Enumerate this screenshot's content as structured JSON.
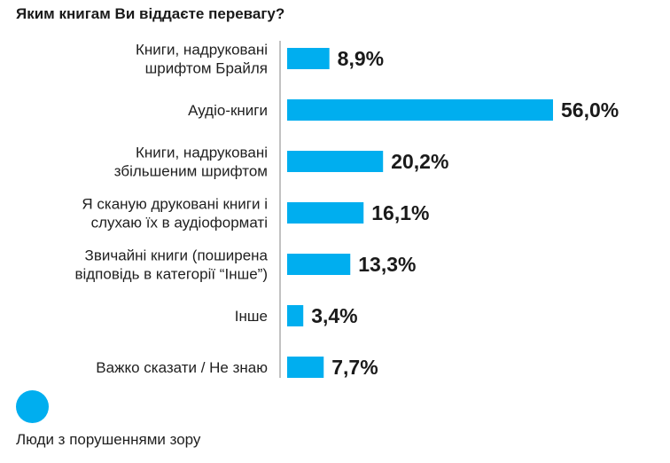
{
  "chart_data": {
    "type": "bar",
    "orientation": "horizontal",
    "title": "Яким книгам Ви віддаєте перевагу?",
    "categories": [
      [
        "Книги, надруковані",
        "шрифтом Брайля"
      ],
      [
        "Аудіо-книги"
      ],
      [
        "Книги, надруковані",
        "збільшеним шрифтом"
      ],
      [
        "Я сканую друковані книги і",
        "слухаю їх в аудіоформаті"
      ],
      [
        "Звичайні книги (поширена",
        "відповідь в категорії “Інше”)"
      ],
      [
        "Інше"
      ],
      [
        "Важко сказати / Не знаю"
      ]
    ],
    "series": [
      {
        "name": "Люди з порушеннями зору",
        "values": [
          8.9,
          56.0,
          20.2,
          16.1,
          13.3,
          3.4,
          7.7
        ],
        "labels": [
          "8,9%",
          "56,0%",
          "20,2%",
          "16,1%",
          "13,3%",
          "3,4%",
          "7,7%"
        ]
      }
    ],
    "xlim": [
      0,
      56.0
    ],
    "grid": false,
    "legend_position": "bottom-left",
    "colors": {
      "bar": "#00aeef",
      "axis": "#9a9a9a",
      "text": "#1a1a1a"
    }
  }
}
